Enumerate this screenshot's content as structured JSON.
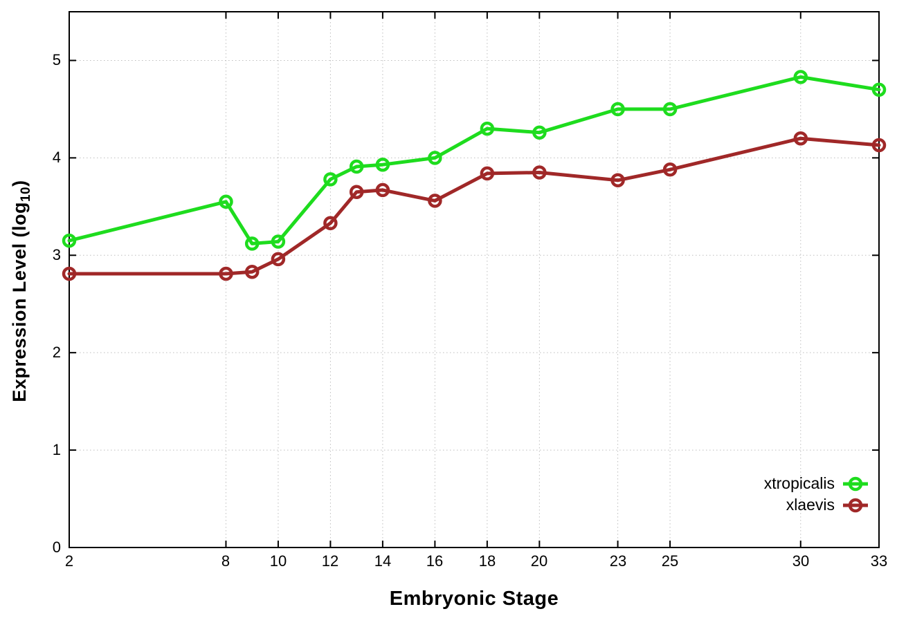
{
  "figure_title": "",
  "x_axis": {
    "title": "Embryonic Stage"
  },
  "y_axis": {
    "title_prefix": "Expression Level (log",
    "title_sub": "10",
    "title_suffix": ")"
  },
  "chart_data": {
    "type": "line",
    "title": "",
    "xlabel": "Embryonic Stage",
    "ylabel": "Expression Level (log10)",
    "xlim": [
      2,
      33
    ],
    "ylim": [
      0,
      5.5
    ],
    "x_ticks": [
      2,
      8,
      10,
      12,
      14,
      16,
      18,
      20,
      23,
      25,
      30,
      33
    ],
    "y_ticks": [
      0,
      1,
      2,
      3,
      4,
      5
    ],
    "grid": true,
    "grid_style": "dotted",
    "legend_position": "bottom-right-inside",
    "x": [
      2,
      8,
      9,
      10,
      12,
      13,
      14,
      16,
      18,
      20,
      23,
      25,
      30,
      33
    ],
    "series": [
      {
        "name": "xtropicalis",
        "color": "#1edc1e",
        "marker": "open-circle",
        "values": [
          3.15,
          3.55,
          3.12,
          3.14,
          3.78,
          3.91,
          3.93,
          4.0,
          4.3,
          4.26,
          4.5,
          4.5,
          4.83,
          4.7
        ]
      },
      {
        "name": "xlaevis",
        "color": "#a02828",
        "marker": "open-circle",
        "values": [
          2.81,
          2.81,
          2.83,
          2.96,
          3.33,
          3.65,
          3.67,
          3.56,
          3.84,
          3.85,
          3.77,
          3.88,
          4.2,
          4.13
        ]
      }
    ],
    "colors": {
      "plot_border": "#000000",
      "gridline": "#bdbdbd",
      "background": "#ffffff",
      "text": "#000000"
    }
  }
}
